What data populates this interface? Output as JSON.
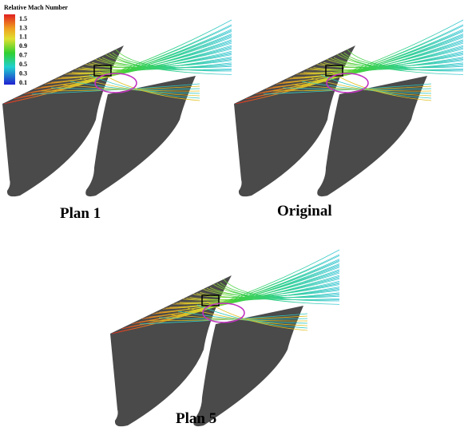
{
  "legend": {
    "title": "Relative Mach Number",
    "labels": [
      "1.5",
      "1.3",
      "1.1",
      "0.9",
      "0.7",
      "0.5",
      "0.3",
      "0.1"
    ]
  },
  "panels": [
    {
      "caption": "Plan 1"
    },
    {
      "caption": "Original"
    },
    {
      "caption": "Plan 5"
    }
  ]
}
